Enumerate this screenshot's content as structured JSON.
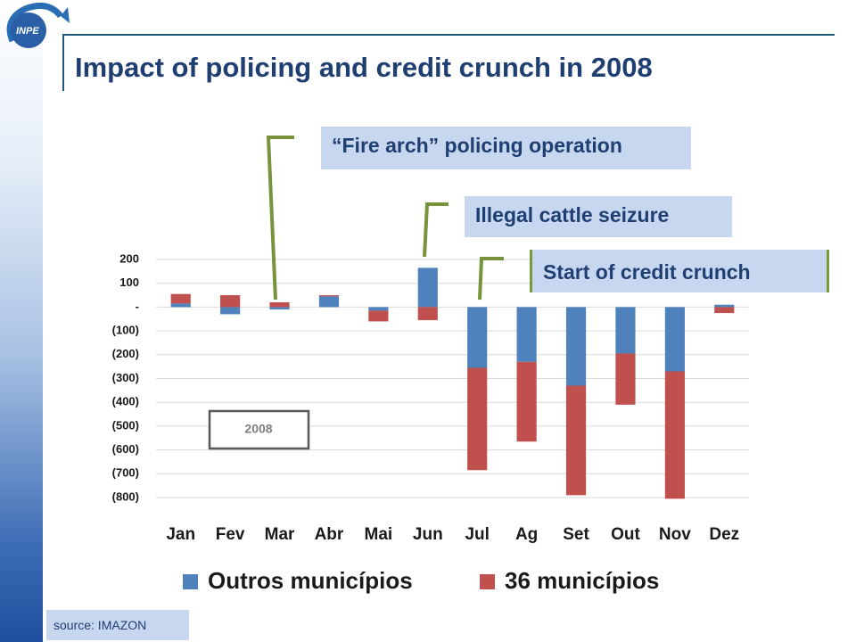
{
  "header": {
    "logo_text": "INPE",
    "title": "Impact of policing and credit crunch in 2008"
  },
  "callouts": {
    "fire_arch": "“Fire arch” policing operation",
    "cattle": "Illegal cattle seizure",
    "credit": "Start of credit crunch"
  },
  "footer": {
    "source": "source: IMAZON"
  },
  "colors": {
    "outros": "#4f81bd",
    "m36": "#c0504d",
    "title": "#1f3f73",
    "callout_bg": "#c6d7ef",
    "bracket": "#77933c"
  },
  "chart_data": {
    "type": "bar",
    "stacked": true,
    "categories": [
      "Jan",
      "Fev",
      "Mar",
      "Abr",
      "Mai",
      "Jun",
      "Jul",
      "Ag",
      "Set",
      "Out",
      "Nov",
      "Dez"
    ],
    "series": [
      {
        "name": "Outros municípios",
        "values": [
          15,
          -30,
          -10,
          45,
          -15,
          165,
          -255,
          -230,
          -330,
          -195,
          -270,
          10
        ]
      },
      {
        "name": "36 municípios",
        "values": [
          40,
          50,
          20,
          5,
          -45,
          -55,
          -430,
          -335,
          -460,
          -215,
          -535,
          -25
        ]
      }
    ],
    "ylim": [
      -800,
      200
    ],
    "yticks": [
      "200",
      "100",
      "-",
      "(100)",
      "(200)",
      "(300)",
      "(400)",
      "(500)",
      "(600)",
      "(700)",
      "(800)"
    ],
    "grid": true,
    "legend": "bottom",
    "inset_label": "2008"
  }
}
